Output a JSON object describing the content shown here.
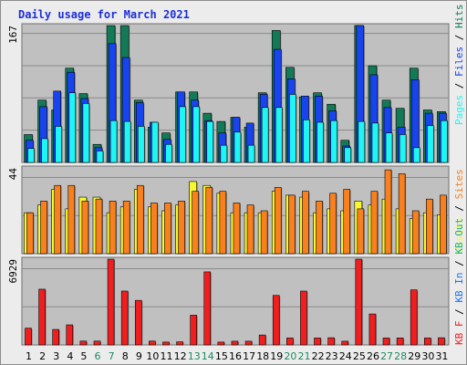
{
  "page_title": "Daily usage for March 2021",
  "colors": {
    "visits": "#f8f82e",
    "sites": "#f8801e",
    "pages": "#1ef6f6",
    "files": "#1844f0",
    "hits": "#137a58",
    "kb_in": "#1e74f0",
    "kb_out": "#1eb08a",
    "kb_f": "#f01e1e",
    "weekend_label": "#1e8a60",
    "weekday_label": "#000000"
  },
  "chart_data": [
    {
      "type": "bar",
      "max_label": "167",
      "ylim": [
        0,
        167
      ],
      "legend": [
        "Pages",
        "Files",
        "Hits"
      ],
      "x": [
        "1",
        "2",
        "3",
        "4",
        "5",
        "6",
        "7",
        "8",
        "9",
        "10",
        "11",
        "12",
        "13",
        "14",
        "15",
        "16",
        "17",
        "18",
        "19",
        "20",
        "21",
        "22",
        "23",
        "24",
        "25",
        "26",
        "27",
        "28",
        "29",
        "30",
        "31"
      ],
      "weekend": [
        6,
        7,
        13,
        14,
        20,
        21,
        27,
        28
      ],
      "series": [
        {
          "name": "Hits",
          "values": [
            34,
            76,
            64,
            115,
            84,
            22,
            167,
            167,
            76,
            43,
            36,
            86,
            86,
            60,
            50,
            55,
            43,
            85,
            161,
            116,
            80,
            85,
            71,
            27,
            167,
            118,
            76,
            66,
            115,
            64,
            62
          ]
        },
        {
          "name": "Files",
          "values": [
            27,
            68,
            87,
            110,
            78,
            18,
            145,
            128,
            73,
            49,
            28,
            86,
            76,
            51,
            36,
            55,
            48,
            83,
            138,
            102,
            81,
            81,
            63,
            20,
            167,
            107,
            67,
            43,
            101,
            60,
            60
          ]
        },
        {
          "name": "Pages",
          "values": [
            17,
            29,
            44,
            85,
            72,
            14,
            51,
            50,
            44,
            49,
            22,
            68,
            68,
            50,
            21,
            37,
            21,
            67,
            67,
            83,
            52,
            49,
            51,
            18,
            50,
            48,
            36,
            34,
            18,
            45,
            51
          ]
        }
      ]
    },
    {
      "type": "bar",
      "max_label": "44",
      "ylim": [
        0,
        44
      ],
      "legend": [
        "Visits",
        "Sites"
      ],
      "x": [
        "1",
        "2",
        "3",
        "4",
        "5",
        "6",
        "7",
        "8",
        "9",
        "10",
        "11",
        "12",
        "13",
        "14",
        "15",
        "16",
        "17",
        "18",
        "19",
        "20",
        "21",
        "22",
        "23",
        "24",
        "25",
        "26",
        "27",
        "28",
        "29",
        "30",
        "31"
      ],
      "series": [
        {
          "name": "Sites",
          "values": [
            21,
            27,
            35,
            35,
            27,
            28,
            27,
            27,
            35,
            26,
            26,
            27,
            32,
            34,
            32,
            26,
            25,
            22,
            34,
            30,
            32,
            27,
            31,
            33,
            23,
            32,
            43,
            41,
            22,
            28,
            30
          ]
        },
        {
          "name": "Visits",
          "values": [
            21,
            25,
            33,
            23,
            29,
            29,
            21,
            24,
            33,
            24,
            22,
            25,
            37,
            35,
            31,
            21,
            21,
            21,
            32,
            30,
            29,
            21,
            23,
            22,
            27,
            25,
            28,
            23,
            18,
            21,
            20
          ]
        }
      ]
    },
    {
      "type": "bar",
      "max_label": "6929",
      "ylim": [
        0,
        6929
      ],
      "legend": [
        "KB F",
        "KB In",
        "KB Out"
      ],
      "x": [
        "1",
        "2",
        "3",
        "4",
        "5",
        "6",
        "7",
        "8",
        "9",
        "10",
        "11",
        "12",
        "13",
        "14",
        "15",
        "16",
        "17",
        "18",
        "19",
        "20",
        "21",
        "22",
        "23",
        "24",
        "25",
        "26",
        "27",
        "28",
        "29",
        "30",
        "31"
      ],
      "series": [
        {
          "name": "KB F",
          "values": [
            1350,
            4500,
            1250,
            1620,
            310,
            310,
            6929,
            4350,
            3600,
            310,
            230,
            250,
            2400,
            5900,
            230,
            300,
            300,
            800,
            4000,
            560,
            4350,
            560,
            580,
            300,
            6929,
            2500,
            560,
            560,
            4450,
            560,
            580
          ]
        }
      ]
    }
  ]
}
